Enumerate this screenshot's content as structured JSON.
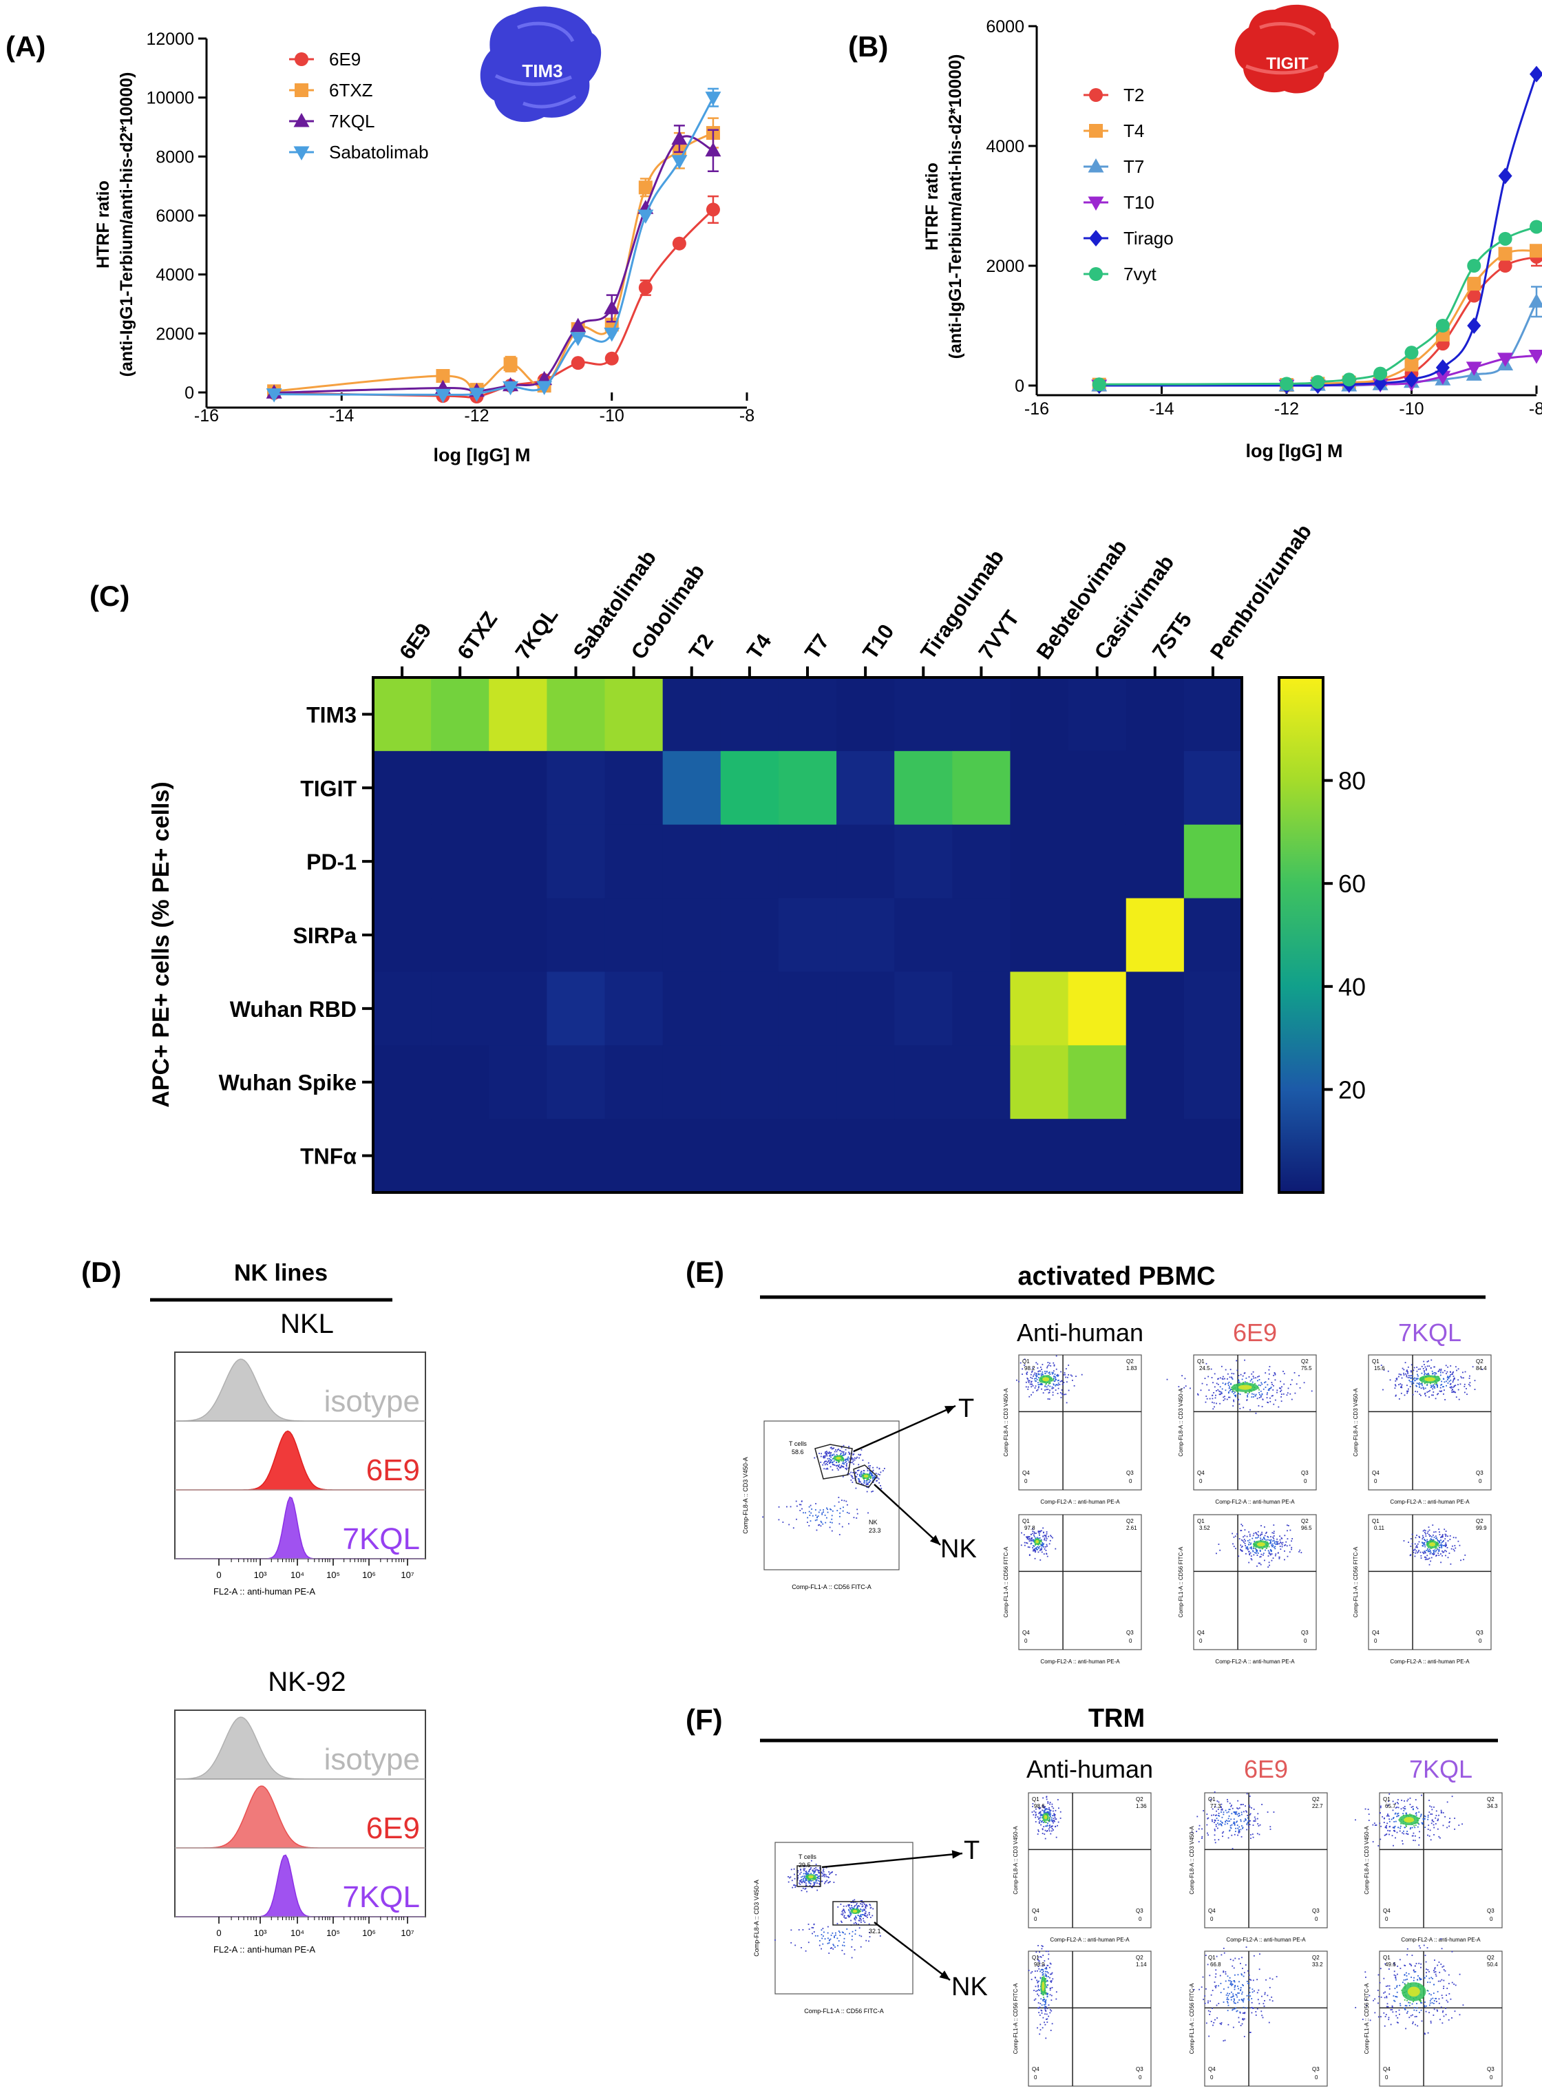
{
  "panelA": {
    "label": "(A)",
    "protein": "TIM3",
    "ylabel1": "HTRF ratio",
    "ylabel2": "(anti-IgG1-Terbium/anti-his-d2*10000)",
    "xlabel": "log [IgG] M",
    "xticks": [
      "-16",
      "-14",
      "-12",
      "-10",
      "-8"
    ],
    "yticks": [
      "0",
      "2000",
      "4000",
      "6000",
      "8000",
      "10000",
      "12000"
    ]
  },
  "panelB": {
    "label": "(B)",
    "protein": "TIGIT",
    "ylabel1": "HTRF ratio",
    "ylabel2": "(anti-IgG1-Terbium/anti-his-d2*10000)",
    "xlabel": "log [IgG] M",
    "xticks": [
      "-16",
      "-14",
      "-12",
      "-10",
      "-8"
    ],
    "yticks": [
      "0",
      "2000",
      "4000",
      "6000"
    ]
  },
  "panelC": {
    "label": "(C)",
    "ylabel": "APC+ PE+ cells (% PE+ cells)",
    "colorbar_ticks": [
      "20",
      "40",
      "60",
      "80"
    ]
  },
  "panelD": {
    "label": "(D)",
    "title": "NK lines",
    "groups": [
      {
        "name": "NKL",
        "tracks": [
          "isotype",
          "6E9",
          "7KQL"
        ]
      },
      {
        "name": "NK-92",
        "tracks": [
          "isotype",
          "6E9",
          "7KQL"
        ]
      }
    ],
    "xticks": [
      "0",
      "10³",
      "10⁴",
      "10⁵",
      "10⁶",
      "10⁷"
    ],
    "xlabel": "FL2-A :: anti-human PE-A"
  },
  "panelE": {
    "label": "(E)",
    "title": "activated PBMC",
    "cols": [
      "Anti-human",
      "6E9",
      "7KQL"
    ],
    "rows": [
      "T",
      "NK"
    ],
    "gate_labels": [
      "T cells",
      "58.6",
      "NK",
      "23.3"
    ],
    "gate_xlabel": "Comp-FL1-A :: CD56 FITC-A",
    "gate_ylabel": "Comp-FL8-A :: CD3 V450-A",
    "quads": [
      [
        [
          "Q1",
          "98.2",
          "Q2",
          "1.83",
          "Q4",
          "0",
          "Q3",
          "0"
        ],
        [
          "Q1",
          "24.5",
          "Q2",
          "75.5",
          "Q4",
          "0",
          "Q3",
          "0"
        ],
        [
          "Q1",
          "15.6",
          "Q2",
          "84.4",
          "Q4",
          "0",
          "Q3",
          "0"
        ]
      ],
      [
        [
          "Q1",
          "97.8",
          "Q2",
          "2.61",
          "Q4",
          "0",
          "Q3",
          "0"
        ],
        [
          "Q1",
          "3.52",
          "Q2",
          "96.5",
          "Q4",
          "0",
          "Q3",
          "0"
        ],
        [
          "Q1",
          "0.11",
          "Q2",
          "99.9",
          "Q4",
          "0",
          "Q3",
          "0"
        ]
      ]
    ],
    "dot_xlabel": "Comp-FL2-A :: anti-human PE-A",
    "dot_ylabels": [
      "Comp-FL8-A :: CD3 V450-A",
      "Comp-FL1-A :: CD56 FITC-A"
    ]
  },
  "panelF": {
    "label": "(F)",
    "title": "TRM",
    "cols": [
      "Anti-human",
      "6E9",
      "7KQL"
    ],
    "rows": [
      "T",
      "NK"
    ],
    "gate_labels": [
      "T cells",
      "29.5",
      "32.1"
    ],
    "gate_xlabel": "Comp-FL1-A :: CD56 FITC-A",
    "gate_ylabel": "Comp-FL8-A :: CD3 V450-A",
    "quads": [
      [
        [
          "Q1",
          "98.6",
          "Q2",
          "1.36",
          "Q4",
          "0",
          "Q3",
          "0"
        ],
        [
          "Q1",
          "77.3",
          "Q2",
          "22.7",
          "Q4",
          "0",
          "Q3",
          "0"
        ],
        [
          "Q1",
          "65.7",
          "Q2",
          "34.3",
          "Q4",
          "0",
          "Q3",
          "0"
        ]
      ],
      [
        [
          "Q1",
          "98.9",
          "Q2",
          "1.14",
          "Q4",
          "0",
          "Q3",
          "0"
        ],
        [
          "Q1",
          "66.8",
          "Q2",
          "33.2",
          "Q4",
          "0",
          "Q3",
          "0"
        ],
        [
          "Q1",
          "49.6",
          "Q2",
          "50.4",
          "Q4",
          "0",
          "Q3",
          "0"
        ]
      ]
    ],
    "dot_xlabel": "Comp-FL2-A :: anti-human PE-A",
    "dot_ylabels": [
      "Comp-FL8-A :: CD3 V450-A",
      "Comp-FL1-A :: CD56 FITC-A"
    ]
  },
  "chart_data": [
    {
      "type": "line",
      "panel": "A",
      "title": "TIM3",
      "xlabel": "log [IgG] M",
      "ylabel": "HTRF ratio (anti-IgG1-Terbium/anti-his-d2*10000)",
      "xlim": [
        -16,
        -8
      ],
      "ylim": [
        0,
        12000
      ],
      "legend": "top-left",
      "series": [
        {
          "name": "6E9",
          "color": "#e8413c",
          "marker": "circle",
          "x": [
            -15,
            -12.5,
            -12,
            -11.5,
            -11,
            -10.5,
            -10,
            -9.5,
            -9,
            -8.5
          ],
          "y": [
            -20,
            -120,
            -140,
            230,
            420,
            1000,
            1150,
            3550,
            5050,
            6200
          ],
          "err": [
            0,
            0,
            0,
            0,
            0,
            0,
            0,
            250,
            0,
            450
          ]
        },
        {
          "name": "6TXZ",
          "color": "#f5a040",
          "marker": "square",
          "x": [
            -15,
            -12.5,
            -12,
            -11.5,
            -11,
            -10.5,
            -10,
            -9.5,
            -9,
            -8.5
          ],
          "y": [
            40,
            560,
            90,
            960,
            230,
            2150,
            2300,
            6950,
            8200,
            8800
          ],
          "err": [
            0,
            0,
            0,
            250,
            0,
            0,
            0,
            300,
            600,
            500
          ]
        },
        {
          "name": "7KQL",
          "color": "#6a1b9a",
          "marker": "triangle-up",
          "x": [
            -15,
            -12.5,
            -12,
            -11.5,
            -11,
            -10.5,
            -10,
            -9.5,
            -9,
            -8.5
          ],
          "y": [
            -10,
            150,
            50,
            240,
            450,
            2250,
            2850,
            6250,
            8600,
            8200
          ],
          "err": [
            0,
            0,
            0,
            0,
            0,
            0,
            450,
            0,
            450,
            700
          ]
        },
        {
          "name": "Sabatolimab",
          "color": "#4a9fe0",
          "marker": "triangle-down",
          "x": [
            -15,
            -12.5,
            -12,
            -11.5,
            -11,
            -10.5,
            -10,
            -9.5,
            -9,
            -8.5
          ],
          "y": [
            -60,
            -80,
            -40,
            180,
            190,
            1850,
            2000,
            6000,
            7850,
            10000
          ],
          "err": [
            0,
            0,
            0,
            0,
            0,
            0,
            0,
            0,
            0,
            300
          ]
        }
      ]
    },
    {
      "type": "line",
      "panel": "B",
      "title": "TIGIT",
      "xlabel": "log [IgG] M",
      "ylabel": "HTRF ratio (anti-IgG1-Terbium/anti-his-d2*10000)",
      "xlim": [
        -16,
        -8
      ],
      "ylim": [
        0,
        6000
      ],
      "legend": "top-left",
      "series": [
        {
          "name": "T2",
          "color": "#e8413c",
          "marker": "circle",
          "x": [
            -15,
            -12,
            -11.5,
            -11,
            -10.5,
            -10,
            -9.5,
            -9,
            -8.5,
            -8
          ],
          "y": [
            10,
            0,
            20,
            40,
            80,
            200,
            700,
            1500,
            2000,
            2150
          ],
          "err": [
            0,
            0,
            0,
            0,
            0,
            0,
            0,
            0,
            0,
            150
          ]
        },
        {
          "name": "T4",
          "color": "#f5a040",
          "marker": "square",
          "x": [
            -15,
            -12,
            -11.5,
            -11,
            -10.5,
            -10,
            -9.5,
            -9,
            -8.5,
            -8
          ],
          "y": [
            15,
            10,
            30,
            50,
            100,
            350,
            850,
            1700,
            2200,
            2250
          ],
          "err": [
            0,
            0,
            0,
            0,
            0,
            0,
            0,
            0,
            0,
            0
          ]
        },
        {
          "name": "T7",
          "color": "#5b9bd5",
          "marker": "triangle-up",
          "x": [
            -15,
            -12,
            -11.5,
            -11,
            -10.5,
            -10,
            -9.5,
            -9,
            -8.5,
            -8
          ],
          "y": [
            0,
            0,
            10,
            0,
            20,
            60,
            100,
            180,
            350,
            1400
          ],
          "err": [
            0,
            0,
            0,
            0,
            0,
            0,
            0,
            0,
            0,
            250
          ]
        },
        {
          "name": "T10",
          "color": "#9b27d0",
          "marker": "triangle-down",
          "x": [
            -15,
            -12,
            -11.5,
            -11,
            -10.5,
            -10,
            -9.5,
            -9,
            -8.5,
            -8
          ],
          "y": [
            0,
            0,
            0,
            10,
            20,
            40,
            150,
            300,
            450,
            500
          ],
          "err": [
            0,
            0,
            0,
            0,
            0,
            0,
            0,
            0,
            0,
            0
          ]
        },
        {
          "name": "Tirago",
          "color": "#1a1fd0",
          "marker": "diamond",
          "x": [
            -15,
            -12,
            -11.5,
            -11,
            -10.5,
            -10,
            -9.5,
            -9,
            -8.5,
            -8
          ],
          "y": [
            0,
            0,
            0,
            20,
            40,
            100,
            300,
            1000,
            3500,
            5200
          ],
          "err": [
            0,
            0,
            0,
            0,
            0,
            0,
            0,
            0,
            0,
            0
          ]
        },
        {
          "name": "7vyt",
          "color": "#2ec27e",
          "marker": "circle",
          "x": [
            -15,
            -12,
            -11.5,
            -11,
            -10.5,
            -10,
            -9.5,
            -9,
            -8.5,
            -8
          ],
          "y": [
            20,
            30,
            60,
            100,
            200,
            550,
            1000,
            2000,
            2450,
            2650
          ],
          "err": [
            0,
            0,
            0,
            0,
            0,
            0,
            0,
            0,
            0,
            0
          ]
        }
      ]
    },
    {
      "type": "heatmap",
      "panel": "C",
      "ylabel": "APC+ PE+ cells (% PE+ cells)",
      "columns": [
        "6E9",
        "6TXZ",
        "7KQL",
        "Sabatolimab",
        "Cobolimab",
        "T2",
        "T4",
        "T7",
        "T10",
        "Tiragolumab",
        "7VYT",
        "Bebtelovimab",
        "Casirivimab",
        "7ST5",
        "Pembrolizumab"
      ],
      "rows": [
        "TIM3",
        "TIGIT",
        "PD-1",
        "SIRPa",
        "Wuhan RBD",
        "Wuhan Spike",
        "TNFα"
      ],
      "colorbar_range": [
        0,
        100
      ],
      "colorbar_ticks": [
        20,
        40,
        60,
        80
      ],
      "values": [
        [
          75,
          70,
          88,
          73,
          78,
          3,
          3,
          3,
          2,
          3,
          3,
          2,
          3,
          2,
          3
        ],
        [
          2,
          2,
          2,
          5,
          3,
          22,
          50,
          52,
          8,
          57,
          62,
          2,
          2,
          2,
          7
        ],
        [
          2,
          2,
          2,
          5,
          3,
          3,
          3,
          3,
          3,
          5,
          3,
          2,
          2,
          2,
          65
        ],
        [
          2,
          2,
          2,
          3,
          3,
          3,
          3,
          5,
          5,
          3,
          3,
          2,
          2,
          99,
          3
        ],
        [
          3,
          3,
          3,
          10,
          6,
          3,
          3,
          3,
          3,
          5,
          3,
          88,
          99,
          2,
          4
        ],
        [
          2,
          2,
          3,
          5,
          3,
          3,
          3,
          3,
          3,
          3,
          3,
          82,
          72,
          2,
          4
        ],
        [
          2,
          2,
          2,
          2,
          2,
          2,
          2,
          2,
          2,
          2,
          2,
          2,
          2,
          2,
          2
        ]
      ]
    }
  ]
}
